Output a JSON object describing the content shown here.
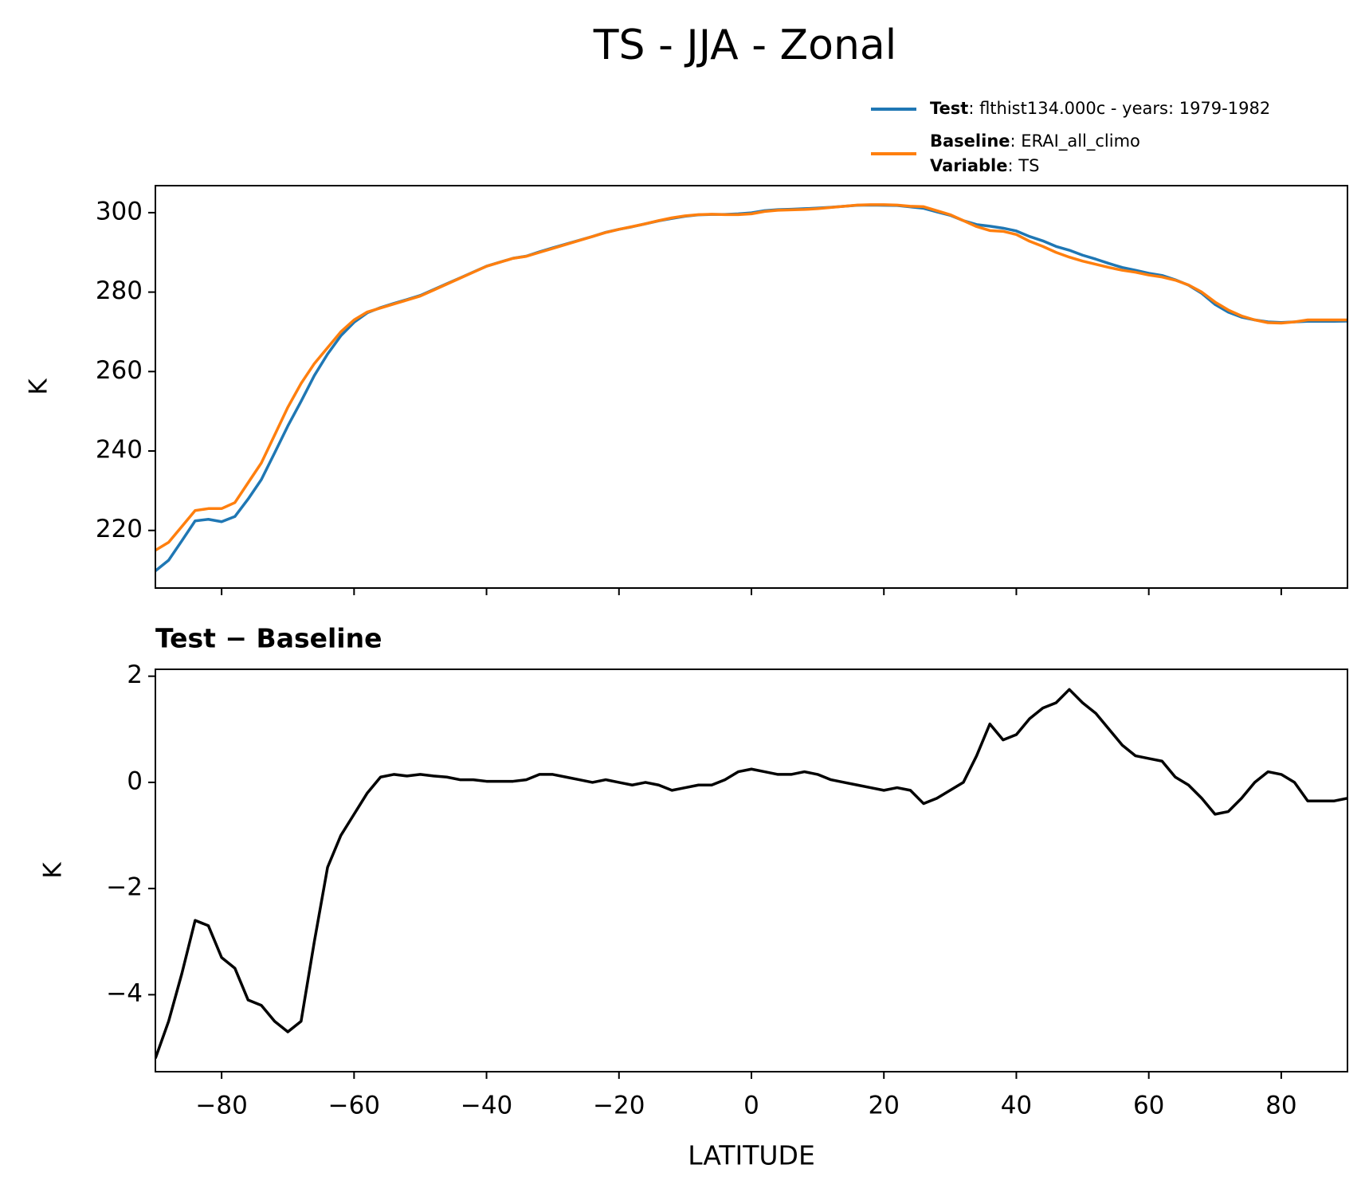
{
  "chart_data": [
    {
      "type": "line",
      "title": "TS - JJA - Zonal",
      "ylabel": "K",
      "x": [
        -90,
        -88,
        -86,
        -84,
        -82,
        -80,
        -78,
        -76,
        -74,
        -72,
        -70,
        -68,
        -66,
        -64,
        -62,
        -60,
        -58,
        -56,
        -54,
        -52,
        -50,
        -48,
        -46,
        -44,
        -42,
        -40,
        -38,
        -36,
        -34,
        -32,
        -30,
        -28,
        -26,
        -24,
        -22,
        -20,
        -18,
        -16,
        -14,
        -12,
        -10,
        -8,
        -6,
        -4,
        -2,
        0,
        2,
        4,
        6,
        8,
        10,
        12,
        14,
        16,
        18,
        20,
        22,
        24,
        26,
        28,
        30,
        32,
        34,
        36,
        38,
        40,
        42,
        44,
        46,
        48,
        50,
        52,
        54,
        56,
        58,
        60,
        62,
        64,
        66,
        68,
        70,
        72,
        74,
        76,
        78,
        80,
        82,
        84,
        86,
        88,
        90
      ],
      "series": [
        {
          "name": "Test",
          "color": "#1f77b4",
          "legend_lines": [
            {
              "key": "Test",
              "text": ": flthist134.000c - years: 1979-1982"
            }
          ],
          "values": [
            209.8,
            212.5,
            217.4,
            222.4,
            222.8,
            222.2,
            223.5,
            227.9,
            232.8,
            239.5,
            246.3,
            252.5,
            259,
            264.4,
            269,
            272.4,
            274.8,
            276.1,
            277.15,
            278.12,
            279.15,
            280.62,
            282.1,
            283.55,
            285.05,
            286.52,
            287.52,
            288.52,
            289.05,
            290.15,
            291.15,
            292.1,
            293.05,
            294,
            295.05,
            295.8,
            296.45,
            297.2,
            297.95,
            298.55,
            299.1,
            299.45,
            299.55,
            299.55,
            299.7,
            299.95,
            300.5,
            300.75,
            300.85,
            301,
            301.15,
            301.35,
            301.6,
            301.85,
            301.9,
            301.85,
            301.8,
            301.45,
            301.1,
            300.2,
            299.35,
            298,
            297,
            296.6,
            296.1,
            295.4,
            294,
            292.9,
            291.5,
            290.55,
            289.3,
            288.3,
            287.2,
            286.2,
            285.5,
            284.75,
            284.2,
            283.1,
            281.75,
            279.7,
            276.9,
            274.95,
            273.7,
            273,
            272.5,
            272.35,
            272.5,
            272.65,
            272.65,
            272.65,
            272.7
          ]
        },
        {
          "name": "Baseline",
          "color": "#ff7f0e",
          "legend_lines": [
            {
              "key": "Baseline",
              "text": ": ERAI_all_climo"
            },
            {
              "key": "Variable",
              "text": ": TS"
            }
          ],
          "values": [
            215,
            217,
            221,
            225,
            225.5,
            225.5,
            227,
            232,
            237,
            244,
            251,
            257,
            262,
            266,
            270,
            273,
            275,
            276,
            277,
            278,
            279,
            280.5,
            282,
            283.5,
            285,
            286.5,
            287.5,
            288.5,
            289,
            290,
            291,
            292,
            293,
            294,
            295,
            295.8,
            296.5,
            297.2,
            298,
            298.7,
            299.2,
            299.5,
            299.6,
            299.5,
            299.5,
            299.7,
            300.3,
            300.6,
            300.7,
            300.8,
            301,
            301.3,
            301.6,
            301.9,
            302,
            302,
            301.9,
            301.6,
            301.5,
            300.5,
            299.5,
            298,
            296.5,
            295.5,
            295.3,
            294.5,
            292.8,
            291.5,
            290,
            288.8,
            287.8,
            287,
            286.2,
            285.5,
            285,
            284.3,
            283.8,
            283,
            281.8,
            280,
            277.5,
            275.5,
            274,
            273,
            272.3,
            272.2,
            272.5,
            273,
            273,
            273,
            273
          ]
        }
      ],
      "xlim": [
        -90,
        90
      ],
      "xticks": [
        -80,
        -60,
        -40,
        -20,
        0,
        20,
        40,
        60,
        80
      ],
      "ylim": [
        205.5,
        306.8
      ],
      "yticks": [
        220,
        240,
        260,
        280,
        300
      ]
    },
    {
      "type": "line",
      "title": "Test − Baseline",
      "ylabel": "K",
      "xlabel": "LATITUDE",
      "x": [
        -90,
        -88,
        -86,
        -84,
        -82,
        -80,
        -78,
        -76,
        -74,
        -72,
        -70,
        -68,
        -66,
        -64,
        -62,
        -60,
        -58,
        -56,
        -54,
        -52,
        -50,
        -48,
        -46,
        -44,
        -42,
        -40,
        -38,
        -36,
        -34,
        -32,
        -30,
        -28,
        -26,
        -24,
        -22,
        -20,
        -18,
        -16,
        -14,
        -12,
        -10,
        -8,
        -6,
        -4,
        -2,
        0,
        2,
        4,
        6,
        8,
        10,
        12,
        14,
        16,
        18,
        20,
        22,
        24,
        26,
        28,
        30,
        32,
        34,
        36,
        38,
        40,
        42,
        44,
        46,
        48,
        50,
        52,
        54,
        56,
        58,
        60,
        62,
        64,
        66,
        68,
        70,
        72,
        74,
        76,
        78,
        80,
        82,
        84,
        86,
        88,
        90
      ],
      "series": [
        {
          "color": "#000000",
          "values": [
            -5.2,
            -4.5,
            -3.6,
            -2.6,
            -2.7,
            -3.3,
            -3.5,
            -4.1,
            -4.2,
            -4.5,
            -4.7,
            -4.5,
            -3,
            -1.6,
            -1,
            -0.6,
            -0.2,
            0.1,
            0.15,
            0.12,
            0.15,
            0.12,
            0.1,
            0.05,
            0.05,
            0.02,
            0.02,
            0.02,
            0.05,
            0.15,
            0.15,
            0.1,
            0.05,
            0,
            0.05,
            0,
            -0.05,
            0,
            -0.05,
            -0.15,
            -0.1,
            -0.05,
            -0.05,
            0.05,
            0.2,
            0.25,
            0.2,
            0.15,
            0.15,
            0.2,
            0.15,
            0.05,
            0,
            -0.05,
            -0.1,
            -0.15,
            -0.1,
            -0.15,
            -0.4,
            -0.3,
            -0.15,
            0,
            0.5,
            1.1,
            0.8,
            0.9,
            1.2,
            1.4,
            1.5,
            1.75,
            1.5,
            1.3,
            1,
            0.7,
            0.5,
            0.45,
            0.4,
            0.1,
            -0.05,
            -0.3,
            -0.6,
            -0.55,
            -0.3,
            0,
            0.2,
            0.15,
            0,
            -0.35,
            -0.35,
            -0.35,
            -0.3
          ]
        }
      ],
      "xlim": [
        -90,
        90
      ],
      "xticks": [
        {
          "value": -80,
          "label": "−80"
        },
        {
          "value": -60,
          "label": "−60"
        },
        {
          "value": -40,
          "label": "−40"
        },
        {
          "value": -20,
          "label": "−20"
        },
        0,
        20,
        40,
        60,
        80
      ],
      "ylim": [
        -5.45,
        2.13
      ],
      "yticks": [
        {
          "value": -4,
          "label": "−4"
        },
        {
          "value": -2,
          "label": "−2"
        },
        0,
        2
      ]
    }
  ]
}
